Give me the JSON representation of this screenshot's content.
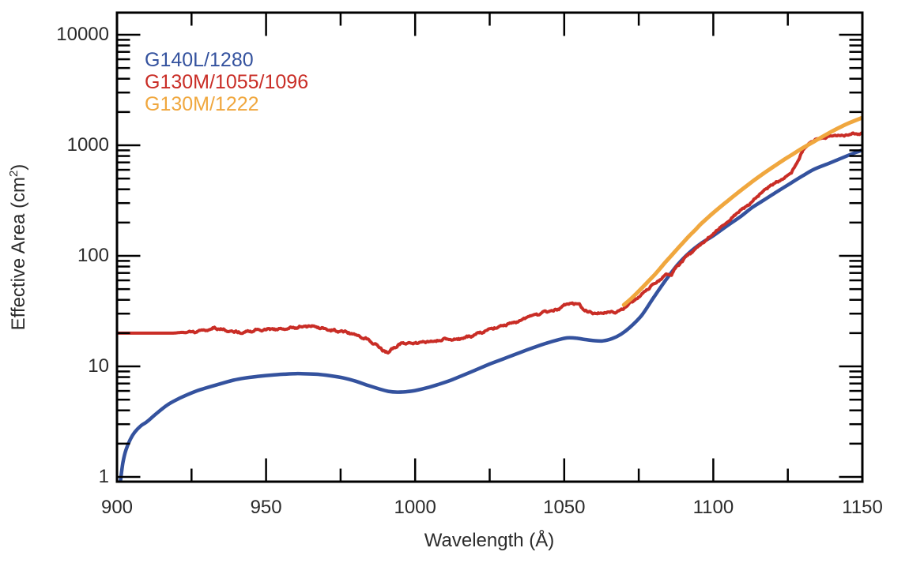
{
  "figure": {
    "background": "#FFFFFF",
    "text_color": "#2B2B2B",
    "axis_color": "#000000"
  },
  "axes": {
    "xlabel": "Wavelength (Å)",
    "ylabel_prefix": "Effective Area (cm",
    "ylabel_sup": "2",
    "ylabel_suffix": ")",
    "x_tick_labels": [
      "900",
      "950",
      "1000",
      "1050",
      "1100",
      "1150"
    ],
    "y_tick_labels": [
      "1",
      "10",
      "100",
      "1000",
      "10000"
    ]
  },
  "legend": {
    "items": [
      {
        "label": "G140L/1280",
        "color": "#34529E"
      },
      {
        "label": "G130M/1055/1096",
        "color": "#C92D26"
      },
      {
        "label": "G130M/1222",
        "color": "#F0A73E"
      }
    ]
  },
  "chart_data": {
    "type": "line",
    "title": "",
    "xlabel": "Wavelength (Å)",
    "ylabel": "Effective Area (cm²)",
    "xlim": [
      900,
      1150
    ],
    "ylim": [
      1,
      10000
    ],
    "yscale": "log",
    "grid": false,
    "legend_position": "upper-left-inside",
    "x_major_ticks": [
      900,
      950,
      1000,
      1050,
      1100,
      1150
    ],
    "x_minor_ticks": [
      925,
      975,
      1025,
      1075,
      1125
    ],
    "y_major_ticks": [
      1,
      10,
      100,
      1000,
      10000
    ],
    "series": [
      {
        "name": "G140L/1280",
        "color": "#34529E",
        "style": "smooth",
        "points": [
          [
            901.2,
            0.93
          ],
          [
            902,
            1.35
          ],
          [
            903,
            1.75
          ],
          [
            904.5,
            2.2
          ],
          [
            906,
            2.55
          ],
          [
            908,
            2.9
          ],
          [
            910,
            3.15
          ],
          [
            913,
            3.7
          ],
          [
            917,
            4.5
          ],
          [
            921,
            5.15
          ],
          [
            926,
            5.9
          ],
          [
            930,
            6.4
          ],
          [
            935,
            7.0
          ],
          [
            939,
            7.5
          ],
          [
            943,
            7.85
          ],
          [
            948,
            8.15
          ],
          [
            952,
            8.35
          ],
          [
            956,
            8.5
          ],
          [
            960,
            8.6
          ],
          [
            964,
            8.55
          ],
          [
            968,
            8.45
          ],
          [
            972,
            8.2
          ],
          [
            976,
            7.85
          ],
          [
            980,
            7.35
          ],
          [
            984,
            6.75
          ],
          [
            988,
            6.25
          ],
          [
            991,
            5.95
          ],
          [
            994,
            5.85
          ],
          [
            997,
            5.9
          ],
          [
            1000,
            6.05
          ],
          [
            1004,
            6.4
          ],
          [
            1008,
            6.9
          ],
          [
            1012,
            7.5
          ],
          [
            1016,
            8.3
          ],
          [
            1020,
            9.2
          ],
          [
            1025,
            10.5
          ],
          [
            1030,
            11.8
          ],
          [
            1035,
            13.3
          ],
          [
            1040,
            14.9
          ],
          [
            1044,
            16.2
          ],
          [
            1048,
            17.4
          ],
          [
            1051,
            18.1
          ],
          [
            1054,
            18.0
          ],
          [
            1057,
            17.5
          ],
          [
            1060,
            17.1
          ],
          [
            1063,
            17.0
          ],
          [
            1066,
            17.8
          ],
          [
            1069,
            19.5
          ],
          [
            1072,
            22.5
          ],
          [
            1076,
            29
          ],
          [
            1080,
            42
          ],
          [
            1084,
            60
          ],
          [
            1088,
            83
          ],
          [
            1092,
            107
          ],
          [
            1096,
            130
          ],
          [
            1100,
            152
          ],
          [
            1105,
            190
          ],
          [
            1109,
            225
          ],
          [
            1113,
            273
          ],
          [
            1117,
            320
          ],
          [
            1121,
            375
          ],
          [
            1126,
            455
          ],
          [
            1130,
            530
          ],
          [
            1134,
            610
          ],
          [
            1139,
            690
          ],
          [
            1143,
            765
          ],
          [
            1147,
            845
          ],
          [
            1150,
            905
          ]
        ]
      },
      {
        "name": "G130M/1055/1096",
        "color": "#C92D26",
        "style": "noisy",
        "noise_start": 920,
        "points": [
          [
            900,
            20
          ],
          [
            910,
            20
          ],
          [
            919,
            20
          ],
          [
            922,
            20.3
          ],
          [
            926,
            20.8
          ],
          [
            930,
            21.5
          ],
          [
            933,
            22
          ],
          [
            936,
            21.2
          ],
          [
            940,
            20.6
          ],
          [
            944,
            20.9
          ],
          [
            948,
            21.2
          ],
          [
            952,
            21.5
          ],
          [
            956,
            22
          ],
          [
            960,
            22.6
          ],
          [
            964,
            22.9
          ],
          [
            967,
            22.4
          ],
          [
            970,
            21.9
          ],
          [
            974,
            21.1
          ],
          [
            978,
            19.9
          ],
          [
            982,
            18.6
          ],
          [
            986,
            16.6
          ],
          [
            989,
            14.3
          ],
          [
            991,
            13.2
          ],
          [
            993,
            14.9
          ],
          [
            996,
            15.9
          ],
          [
            1000,
            16.4
          ],
          [
            1004,
            16.9
          ],
          [
            1008,
            17.1
          ],
          [
            1012,
            17.4
          ],
          [
            1016,
            18.1
          ],
          [
            1020,
            19.3
          ],
          [
            1024,
            20.9
          ],
          [
            1028,
            22.9
          ],
          [
            1032,
            24.6
          ],
          [
            1036,
            26.6
          ],
          [
            1040,
            28.6
          ],
          [
            1044,
            30.6
          ],
          [
            1047,
            32.2
          ],
          [
            1049,
            34.6
          ],
          [
            1051,
            36.6
          ],
          [
            1053,
            36.9
          ],
          [
            1055,
            36.4
          ],
          [
            1056.5,
            32
          ],
          [
            1058,
            30.8
          ],
          [
            1060,
            30.1
          ],
          [
            1063,
            30.6
          ],
          [
            1065,
            31.6
          ],
          [
            1067,
            30.9
          ],
          [
            1070,
            33
          ],
          [
            1073,
            38
          ],
          [
            1076,
            45
          ],
          [
            1080,
            57
          ],
          [
            1084,
            66
          ],
          [
            1086,
            68
          ],
          [
            1088,
            80
          ],
          [
            1092,
            105
          ],
          [
            1096,
            128
          ],
          [
            1099,
            150
          ],
          [
            1104,
            195
          ],
          [
            1108,
            245
          ],
          [
            1113,
            310
          ],
          [
            1117,
            390
          ],
          [
            1121,
            460
          ],
          [
            1124,
            510
          ],
          [
            1126,
            560
          ],
          [
            1128,
            700
          ],
          [
            1130,
            900
          ],
          [
            1133,
            1080
          ],
          [
            1136,
            1150
          ],
          [
            1139,
            1200
          ],
          [
            1142,
            1240
          ],
          [
            1145,
            1250
          ],
          [
            1148,
            1260
          ],
          [
            1150,
            1280
          ]
        ]
      },
      {
        "name": "G130M/1222",
        "color": "#F0A73E",
        "style": "smooth",
        "points": [
          [
            1070,
            36
          ],
          [
            1072,
            40
          ],
          [
            1074,
            45
          ],
          [
            1076,
            51
          ],
          [
            1078,
            58
          ],
          [
            1080,
            66
          ],
          [
            1082,
            76
          ],
          [
            1084,
            88
          ],
          [
            1086,
            101
          ],
          [
            1088,
            116
          ],
          [
            1090,
            133
          ],
          [
            1092,
            152
          ],
          [
            1094,
            172
          ],
          [
            1096,
            196
          ],
          [
            1099,
            232
          ],
          [
            1102,
            272
          ],
          [
            1105,
            317
          ],
          [
            1108,
            368
          ],
          [
            1111,
            425
          ],
          [
            1114,
            490
          ],
          [
            1117,
            560
          ],
          [
            1120,
            635
          ],
          [
            1123,
            720
          ],
          [
            1126,
            810
          ],
          [
            1130,
            945
          ],
          [
            1134,
            1090
          ],
          [
            1139,
            1300
          ],
          [
            1143,
            1480
          ],
          [
            1146,
            1610
          ],
          [
            1150,
            1780
          ]
        ]
      }
    ]
  }
}
